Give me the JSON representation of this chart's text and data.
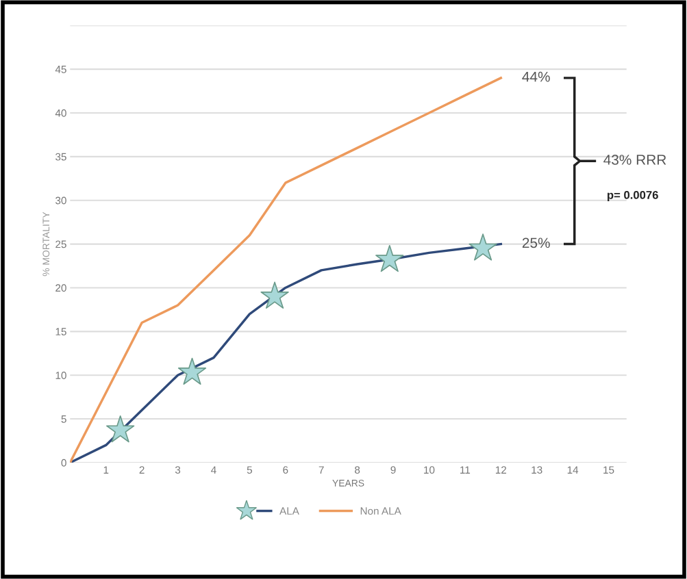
{
  "chart_data": {
    "type": "line",
    "xlabel": "YEARS",
    "ylabel": "% MORTALITY",
    "x": [
      0,
      1,
      2,
      3,
      4,
      5,
      6,
      7,
      8,
      9,
      10,
      11,
      12
    ],
    "xlim": [
      0,
      15.5
    ],
    "xticks": [
      1,
      2,
      3,
      4,
      5,
      6,
      7,
      8,
      9,
      10,
      11,
      12,
      13,
      14,
      15
    ],
    "ylim": [
      0,
      50
    ],
    "yticks": [
      0,
      5,
      10,
      15,
      20,
      25,
      30,
      35,
      40,
      45,
      {
        "value": 50,
        "label": null
      }
    ],
    "grid": "y",
    "legend": "bottom",
    "marker": "none",
    "line_style": "solid",
    "series": [
      {
        "name": "ALA",
        "color": "#2f4a7a",
        "values": [
          0,
          2,
          6,
          10,
          12,
          17,
          20,
          22,
          22.7,
          23.3,
          24,
          24.5,
          25
        ]
      },
      {
        "name": "Non ALA",
        "color": "#ed9a5c",
        "values": [
          0,
          8,
          16,
          18,
          22,
          26,
          32,
          34,
          36,
          38,
          40,
          42,
          44
        ]
      },
      {
        "type": "scatter",
        "marker": "star",
        "color": "#a8d8d8",
        "x": [
          1.4,
          3.4,
          5.7,
          8.9,
          11.5
        ],
        "values": [
          3.7,
          10.3,
          19,
          23.2,
          24.5
        ]
      }
    ],
    "annotations": [
      {
        "text": "44%",
        "x": 12,
        "y": 44
      },
      {
        "text": "25%",
        "x": 12,
        "y": 25
      },
      "43% RRR",
      "p= 0.0076"
    ]
  }
}
